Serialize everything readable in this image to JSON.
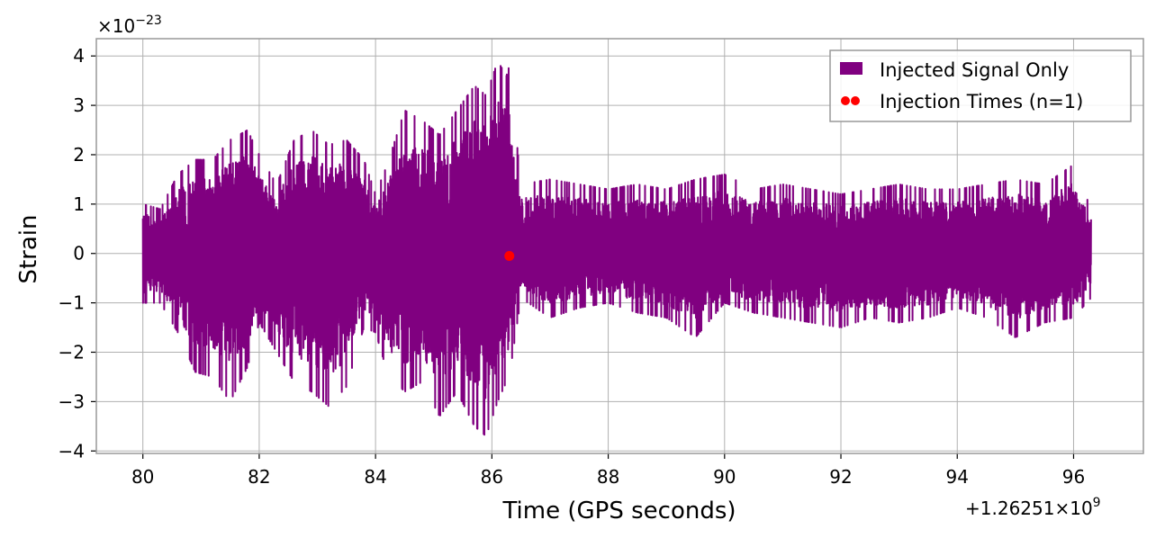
{
  "chart_data": {
    "type": "line",
    "xlabel": "Time (GPS seconds)",
    "ylabel": "Strain",
    "y_scale_text": "×10",
    "y_scale_exponent": "−23",
    "x_offset_text": "+1.26251×10",
    "x_offset_exponent": "9",
    "x_offset_value": 1262510000,
    "xlim": [
      79.2,
      97.2
    ],
    "ylim": [
      -4.05,
      4.35
    ],
    "x_ticks": [
      80,
      82,
      84,
      86,
      88,
      90,
      92,
      94,
      96
    ],
    "x_tick_labels": [
      "80",
      "82",
      "84",
      "86",
      "88",
      "90",
      "92",
      "94",
      "96"
    ],
    "y_ticks": [
      -4,
      -3,
      -2,
      -1,
      0,
      1,
      2,
      3,
      4
    ],
    "y_tick_labels": [
      "−4",
      "−3",
      "−2",
      "−1",
      "0",
      "1",
      "2",
      "3",
      "4"
    ],
    "grid": true,
    "legend_position": "top-right",
    "series": [
      {
        "name": "Injected Signal Only",
        "kind": "line",
        "color": "#800080",
        "x_start": 80.0,
        "x_end": 96.3,
        "envelope_x": [
          80.0,
          80.3,
          80.6,
          80.9,
          81.2,
          81.5,
          81.8,
          82.0,
          82.3,
          82.6,
          82.9,
          83.2,
          83.5,
          83.8,
          84.0,
          84.2,
          84.5,
          84.8,
          85.1,
          85.4,
          85.7,
          85.9,
          86.1,
          86.25,
          86.3,
          86.5,
          87.0,
          87.5,
          88.0,
          88.5,
          89.0,
          89.5,
          90.0,
          90.5,
          91.0,
          91.5,
          92.0,
          92.5,
          93.0,
          93.5,
          94.0,
          94.5,
          95.0,
          95.5,
          96.0,
          96.3
        ],
        "envelope_max": [
          1.0,
          0.9,
          1.6,
          1.9,
          1.9,
          2.3,
          2.5,
          2.0,
          1.4,
          2.3,
          2.5,
          2.2,
          2.3,
          1.9,
          1.2,
          1.8,
          2.9,
          2.7,
          2.4,
          2.9,
          3.4,
          3.2,
          3.9,
          3.6,
          3.8,
          1.4,
          1.5,
          1.4,
          1.3,
          1.4,
          1.3,
          1.5,
          1.6,
          1.3,
          1.4,
          1.3,
          1.2,
          1.3,
          1.4,
          1.3,
          1.3,
          1.4,
          1.5,
          1.4,
          1.8,
          0.9
        ],
        "envelope_min": [
          -1.0,
          -1.0,
          -1.6,
          -2.4,
          -2.5,
          -3.0,
          -2.3,
          -1.4,
          -2.0,
          -2.6,
          -2.8,
          -3.1,
          -2.7,
          -1.5,
          -1.6,
          -2.4,
          -2.8,
          -2.6,
          -3.3,
          -2.8,
          -3.5,
          -3.7,
          -3.0,
          -2.6,
          -2.5,
          -0.9,
          -1.3,
          -1.1,
          -1.0,
          -1.2,
          -1.3,
          -1.7,
          -1.0,
          -1.2,
          -1.3,
          -1.4,
          -1.5,
          -1.3,
          -1.4,
          -1.3,
          -1.1,
          -1.3,
          -1.7,
          -1.4,
          -1.3,
          -0.9
        ]
      },
      {
        "name": "Injection Times (n=1)",
        "kind": "scatter",
        "color": "#ff0000",
        "x": [
          86.3
        ],
        "y": [
          -0.05
        ]
      }
    ]
  }
}
